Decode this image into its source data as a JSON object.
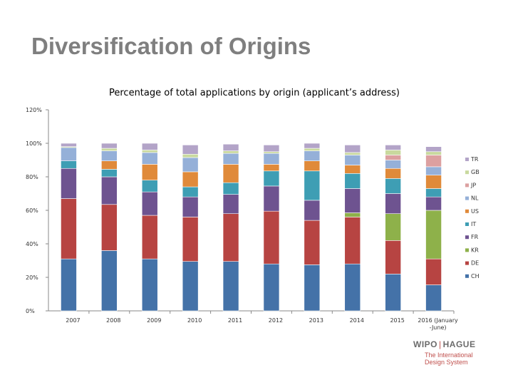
{
  "slide": {
    "title": "Diversification of Origins"
  },
  "logo": {
    "left": "WIPO",
    "separator": "|",
    "right": "HAGUE",
    "line1": "The International",
    "line2": "Design System"
  },
  "chart_data": {
    "type": "bar",
    "stacked": true,
    "title": "Percentage of total applications by origin (applicant’s address)",
    "xlabel": "",
    "ylabel": "",
    "ylim": [
      0,
      120
    ],
    "yticks": [
      0,
      20,
      40,
      60,
      80,
      100,
      120
    ],
    "ytick_labels": [
      "0%",
      "20%",
      "40%",
      "60%",
      "80%",
      "100%",
      "120%"
    ],
    "grid": false,
    "legend": "right",
    "categories": [
      "2007",
      "2008",
      "2009",
      "2010",
      "2011",
      "2012",
      "2013",
      "2014",
      "2015",
      "2016 (January -June)"
    ],
    "series": [
      {
        "name": "CH",
        "color": "#4472a8",
        "values": [
          31,
          36,
          31,
          29.5,
          29.5,
          28,
          27.5,
          28,
          22,
          15.5
        ]
      },
      {
        "name": "DE",
        "color": "#b74442",
        "values": [
          36,
          27.5,
          26,
          26.5,
          28.5,
          31.5,
          26.5,
          28,
          20,
          15.5
        ]
      },
      {
        "name": "KR",
        "color": "#8eb14a",
        "values": [
          0,
          0,
          0,
          0,
          0,
          0,
          0,
          2.5,
          16,
          29
        ]
      },
      {
        "name": "FR",
        "color": "#6e5390",
        "values": [
          18,
          16.5,
          14,
          12,
          11.5,
          15,
          12,
          14.5,
          12,
          8
        ]
      },
      {
        "name": "IT",
        "color": "#3e9eb4",
        "values": [
          4.5,
          4.5,
          7,
          6,
          7,
          9,
          17.5,
          9,
          9,
          5
        ]
      },
      {
        "name": "US",
        "color": "#e08a3a",
        "values": [
          0,
          5,
          9.5,
          9,
          11,
          4,
          6,
          5,
          6,
          8
        ]
      },
      {
        "name": "NL",
        "color": "#95b0d8",
        "values": [
          8,
          6,
          7,
          8.5,
          6.5,
          6.5,
          6,
          6,
          5,
          5
        ]
      },
      {
        "name": "JP",
        "color": "#dca0a0",
        "values": [
          0,
          0,
          0,
          0,
          0,
          0,
          0,
          0,
          3,
          7
        ]
      },
      {
        "name": "GB",
        "color": "#c9d99e",
        "values": [
          0.5,
          1.5,
          1.5,
          2,
          1.5,
          1,
          1.5,
          1.5,
          3,
          2
        ]
      },
      {
        "name": "TR",
        "color": "#b3a4c8",
        "values": [
          2,
          3,
          4,
          5.5,
          4,
          4,
          3,
          4.5,
          3,
          3
        ]
      }
    ]
  }
}
